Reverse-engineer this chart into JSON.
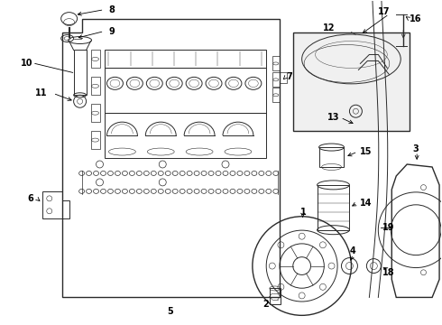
{
  "bg": "#ffffff",
  "lc": "#2a2a2a",
  "tc": "#000000",
  "fig_w": 4.9,
  "fig_h": 3.6,
  "dpi": 100,
  "fs": 7.0
}
